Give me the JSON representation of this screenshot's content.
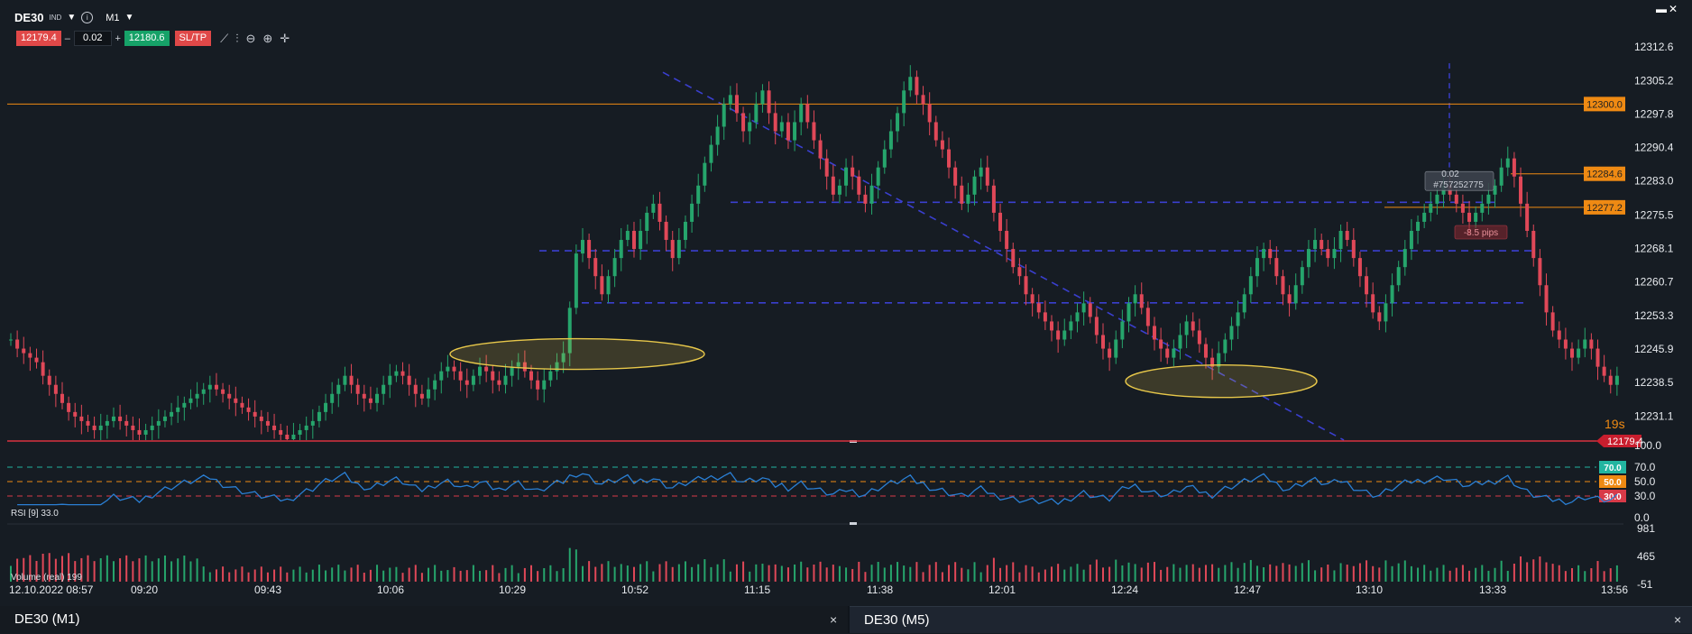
{
  "toolbar": {
    "symbol": "DE30",
    "tag": "IND",
    "timeframe": "M1",
    "bid": "12179.4",
    "lot": "0.02",
    "ask": "12180.6",
    "sltp": "SL/TP"
  },
  "colors": {
    "up": "#26a56c",
    "down": "#e04858",
    "rsi_line": "#2a7fd4",
    "dash_lines": "#3a3fcf",
    "orange": "#ef8a13",
    "ellipse": "#e8c84a"
  },
  "chart_data": [
    {
      "type": "candlestick",
      "title": "",
      "y_ticks": [
        "12312.6",
        "12305.2",
        "12297.8",
        "12290.4",
        "12283.0",
        "12275.5",
        "12268.1",
        "12260.7",
        "12253.3",
        "12245.9",
        "12238.5",
        "12231.1"
      ],
      "x_ticks": [
        "12.10.2022 08:57",
        "09:20",
        "09:43",
        "10:06",
        "10:29",
        "10:52",
        "11:15",
        "11:38",
        "12:01",
        "12:24",
        "12:47",
        "13:10",
        "13:33",
        "13:56"
      ],
      "ylim": [
        12225.8,
        12317.0
      ],
      "price_levels": [
        {
          "label": "12300.0",
          "value": 12300.0
        },
        {
          "label": "12284.6",
          "value": 12284.6
        },
        {
          "label": "12277.2",
          "value": 12277.2
        }
      ],
      "current_price": {
        "label": "12179.4",
        "value": 12179.4
      },
      "countdown": "19s",
      "position_label": "0.02",
      "position_id": "#757252775",
      "pips_label": "-8.5 pips",
      "horizontal_levels": [
        12278.3,
        12267.6,
        12256.1
      ],
      "close_series": [
        12248,
        12246,
        12245,
        12244,
        12243,
        12240,
        12238,
        12236,
        12234,
        12232,
        12231,
        12230,
        12229,
        12228,
        12229,
        12230,
        12231,
        12230,
        12229,
        12228,
        12227,
        12228,
        12229,
        12230,
        12231,
        12232,
        12233,
        12234,
        12235,
        12236,
        12237,
        12238,
        12237,
        12236,
        12235,
        12234,
        12233,
        12232,
        12231,
        12230,
        12229,
        12228,
        12227,
        12226,
        12227,
        12228,
        12229,
        12230,
        12232,
        12234,
        12236,
        12238,
        12240,
        12238,
        12236,
        12235,
        12234,
        12236,
        12238,
        12240,
        12241,
        12240,
        12238,
        12236,
        12235,
        12237,
        12239,
        12241,
        12242,
        12241,
        12239,
        12238,
        12240,
        12242,
        12241,
        12239,
        12238,
        12240,
        12242,
        12243,
        12241,
        12239,
        12237,
        12239,
        12241,
        12243,
        12245,
        12255,
        12267,
        12270,
        12266,
        12262,
        12258,
        12262,
        12266,
        12270,
        12272,
        12268,
        12272,
        12276,
        12278,
        12274,
        12270,
        12266,
        12270,
        12274,
        12278,
        12282,
        12287,
        12291,
        12295,
        12300,
        12302,
        12298,
        12294,
        12296,
        12300,
        12303,
        12298,
        12294,
        12296,
        12292,
        12296,
        12300,
        12296,
        12292,
        12288,
        12284,
        12280,
        12282,
        12286,
        12284,
        12280,
        12278,
        12282,
        12286,
        12290,
        12294,
        12298,
        12303,
        12306,
        12302,
        12300,
        12296,
        12292,
        12290,
        12286,
        12282,
        12278,
        12280,
        12284,
        12286,
        12282,
        12276,
        12272,
        12268,
        12264,
        12262,
        12258,
        12256,
        12254,
        12252,
        12250,
        12248,
        12250,
        12252,
        12254,
        12256,
        12253,
        12249,
        12246,
        12244,
        12248,
        12252,
        12256,
        12258,
        12255,
        12251,
        12248,
        12246,
        12244,
        12246,
        12249,
        12252,
        12250,
        12247,
        12244,
        12242,
        12245,
        12248,
        12251,
        12254,
        12258,
        12262,
        12266,
        12268,
        12266,
        12262,
        12258,
        12256,
        12260,
        12264,
        12268,
        12270,
        12268,
        12266,
        12268,
        12272,
        12270,
        12266,
        12262,
        12258,
        12254,
        12252,
        12256,
        12260,
        12264,
        12268,
        12272,
        12274,
        12276,
        12278,
        12280,
        12282,
        12280,
        12278,
        12276,
        12274,
        12276,
        12278,
        12280,
        12282,
        12286,
        12288,
        12284,
        12278,
        12272,
        12266,
        12260,
        12254,
        12250,
        12248,
        12246,
        12244,
        12246,
        12248,
        12246,
        12242,
        12240,
        12238,
        12240
      ]
    },
    {
      "type": "line",
      "name": "RSI [9]",
      "title": "RSI [9] 33.0",
      "y_ticks": [
        "100.0",
        "70.0",
        "50.0",
        "30.0",
        "0.0"
      ],
      "levels": [
        {
          "label": "70.0",
          "value": 70
        },
        {
          "label": "50.0",
          "value": 50
        },
        {
          "label": "30.0",
          "value": 30
        }
      ],
      "ylim": [
        0,
        100
      ]
    },
    {
      "type": "bar",
      "name": "Volume (real)",
      "title": "Volume (real) 199",
      "y_ticks": [
        "981",
        "465",
        "-51"
      ],
      "ylim": [
        -51,
        981
      ]
    }
  ],
  "tabs": [
    {
      "label": "DE30 (M1)"
    },
    {
      "label": "DE30 (M5)"
    }
  ],
  "close_glyph": "×"
}
